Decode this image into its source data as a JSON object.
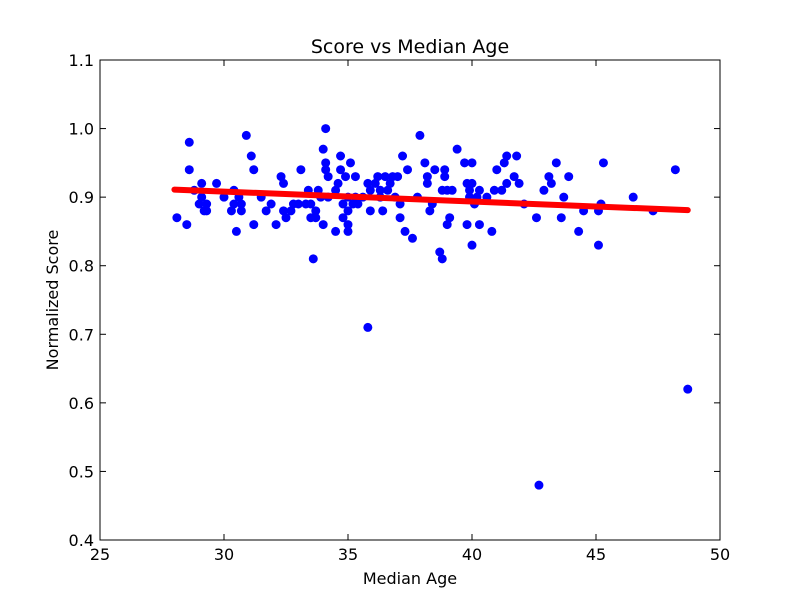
{
  "chart_data": {
    "type": "scatter",
    "title": "Score vs Median Age",
    "xlabel": "Median Age",
    "ylabel": "Normalized Score",
    "xlim": [
      25,
      50
    ],
    "ylim": [
      0.4,
      1.1
    ],
    "xticks": [
      25,
      30,
      35,
      40,
      45,
      50
    ],
    "yticks": [
      0.4,
      0.5,
      0.6,
      0.7,
      0.8,
      0.9,
      1.0,
      1.1
    ],
    "xtick_labels": [
      "25",
      "30",
      "35",
      "40",
      "45",
      "50"
    ],
    "ytick_labels": [
      "0.4",
      "0.5",
      "0.6",
      "0.7",
      "0.8",
      "0.9",
      "1.0",
      "1.1"
    ],
    "grid": false,
    "point_color": "#0000ff",
    "trend_color": "#ff0000",
    "trend_line": {
      "x": [
        28.0,
        48.7
      ],
      "y": [
        0.911,
        0.881
      ]
    },
    "points": [
      [
        28.1,
        0.87
      ],
      [
        28.5,
        0.86
      ],
      [
        28.6,
        0.98
      ],
      [
        28.6,
        0.94
      ],
      [
        28.8,
        0.91
      ],
      [
        29.0,
        0.89
      ],
      [
        29.1,
        0.92
      ],
      [
        29.1,
        0.9
      ],
      [
        29.2,
        0.88
      ],
      [
        29.3,
        0.88
      ],
      [
        29.3,
        0.89
      ],
      [
        29.7,
        0.92
      ],
      [
        30.0,
        0.9
      ],
      [
        30.3,
        0.88
      ],
      [
        30.4,
        0.91
      ],
      [
        30.4,
        0.89
      ],
      [
        30.5,
        0.85
      ],
      [
        30.6,
        0.9
      ],
      [
        30.7,
        0.89
      ],
      [
        30.7,
        0.88
      ],
      [
        30.9,
        0.99
      ],
      [
        31.1,
        0.96
      ],
      [
        31.2,
        0.94
      ],
      [
        31.2,
        0.86
      ],
      [
        31.5,
        0.9
      ],
      [
        31.7,
        0.88
      ],
      [
        31.9,
        0.89
      ],
      [
        32.1,
        0.86
      ],
      [
        32.3,
        0.93
      ],
      [
        32.4,
        0.92
      ],
      [
        32.4,
        0.88
      ],
      [
        32.5,
        0.87
      ],
      [
        32.7,
        0.88
      ],
      [
        32.8,
        0.89
      ],
      [
        33.0,
        0.89
      ],
      [
        33.1,
        0.94
      ],
      [
        33.3,
        0.89
      ],
      [
        33.4,
        0.91
      ],
      [
        33.5,
        0.87
      ],
      [
        33.5,
        0.89
      ],
      [
        33.6,
        0.81
      ],
      [
        33.7,
        0.88
      ],
      [
        33.7,
        0.87
      ],
      [
        33.8,
        0.91
      ],
      [
        33.9,
        0.9
      ],
      [
        34.0,
        0.97
      ],
      [
        34.0,
        0.86
      ],
      [
        34.1,
        1.0
      ],
      [
        34.1,
        0.95
      ],
      [
        34.1,
        0.94
      ],
      [
        34.2,
        0.93
      ],
      [
        34.2,
        0.9
      ],
      [
        34.5,
        0.91
      ],
      [
        34.5,
        0.85
      ],
      [
        34.6,
        0.92
      ],
      [
        34.7,
        0.96
      ],
      [
        34.7,
        0.94
      ],
      [
        34.8,
        0.89
      ],
      [
        34.8,
        0.87
      ],
      [
        34.9,
        0.93
      ],
      [
        35.0,
        0.9
      ],
      [
        35.0,
        0.88
      ],
      [
        35.0,
        0.86
      ],
      [
        35.0,
        0.85
      ],
      [
        35.1,
        0.95
      ],
      [
        35.2,
        0.89
      ],
      [
        35.3,
        0.93
      ],
      [
        35.3,
        0.9
      ],
      [
        35.4,
        0.89
      ],
      [
        35.6,
        0.9
      ],
      [
        35.8,
        0.92
      ],
      [
        35.8,
        0.71
      ],
      [
        35.9,
        0.88
      ],
      [
        35.9,
        0.91
      ],
      [
        36.1,
        0.92
      ],
      [
        36.2,
        0.93
      ],
      [
        36.3,
        0.91
      ],
      [
        36.3,
        0.9
      ],
      [
        36.4,
        0.88
      ],
      [
        36.5,
        0.93
      ],
      [
        36.6,
        0.91
      ],
      [
        36.7,
        0.92
      ],
      [
        36.8,
        0.93
      ],
      [
        36.9,
        0.9
      ],
      [
        37.0,
        0.93
      ],
      [
        37.1,
        0.89
      ],
      [
        37.1,
        0.87
      ],
      [
        37.2,
        0.96
      ],
      [
        37.3,
        0.85
      ],
      [
        37.4,
        0.94
      ],
      [
        37.6,
        0.84
      ],
      [
        37.8,
        0.9
      ],
      [
        37.9,
        0.99
      ],
      [
        38.1,
        0.95
      ],
      [
        38.2,
        0.93
      ],
      [
        38.2,
        0.92
      ],
      [
        38.3,
        0.88
      ],
      [
        38.4,
        0.89
      ],
      [
        38.5,
        0.94
      ],
      [
        38.7,
        0.82
      ],
      [
        38.8,
        0.91
      ],
      [
        38.8,
        0.81
      ],
      [
        38.9,
        0.94
      ],
      [
        38.9,
        0.93
      ],
      [
        39.0,
        0.86
      ],
      [
        39.0,
        0.91
      ],
      [
        39.1,
        0.87
      ],
      [
        39.2,
        0.91
      ],
      [
        39.4,
        0.97
      ],
      [
        39.7,
        0.95
      ],
      [
        39.8,
        0.92
      ],
      [
        39.8,
        0.86
      ],
      [
        39.9,
        0.91
      ],
      [
        39.9,
        0.9
      ],
      [
        40.0,
        0.95
      ],
      [
        40.0,
        0.92
      ],
      [
        40.0,
        0.83
      ],
      [
        40.1,
        0.89
      ],
      [
        40.2,
        0.9
      ],
      [
        40.3,
        0.91
      ],
      [
        40.3,
        0.86
      ],
      [
        40.6,
        0.9
      ],
      [
        40.8,
        0.85
      ],
      [
        40.9,
        0.91
      ],
      [
        41.0,
        0.94
      ],
      [
        41.2,
        0.91
      ],
      [
        41.3,
        0.95
      ],
      [
        41.4,
        0.96
      ],
      [
        41.4,
        0.92
      ],
      [
        41.7,
        0.93
      ],
      [
        41.8,
        0.96
      ],
      [
        41.9,
        0.92
      ],
      [
        42.1,
        0.89
      ],
      [
        42.6,
        0.87
      ],
      [
        42.7,
        0.48
      ],
      [
        42.9,
        0.91
      ],
      [
        43.1,
        0.93
      ],
      [
        43.2,
        0.92
      ],
      [
        43.4,
        0.95
      ],
      [
        43.6,
        0.87
      ],
      [
        43.7,
        0.9
      ],
      [
        43.9,
        0.93
      ],
      [
        44.3,
        0.85
      ],
      [
        44.5,
        0.88
      ],
      [
        45.1,
        0.83
      ],
      [
        45.1,
        0.88
      ],
      [
        45.2,
        0.89
      ],
      [
        45.3,
        0.95
      ],
      [
        46.5,
        0.9
      ],
      [
        47.3,
        0.88
      ],
      [
        48.2,
        0.94
      ],
      [
        48.7,
        0.62
      ]
    ]
  }
}
